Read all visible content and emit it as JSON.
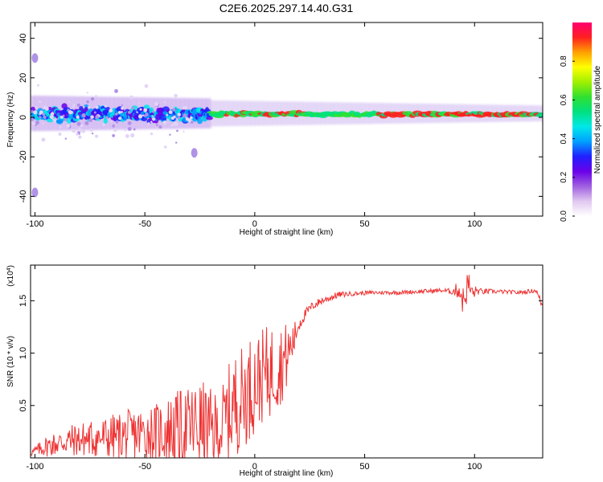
{
  "chart_data": [
    {
      "type": "heatmap",
      "title": "C2E6.2025.297.14.40.G31",
      "xlabel": "Height of straight line (km)",
      "ylabel": "Frequency (Hz)",
      "xlim": [
        -102,
        131
      ],
      "ylim": [
        -50,
        48
      ],
      "xticks": [
        -100,
        -50,
        0,
        50,
        100
      ],
      "yticks": [
        -40,
        -20,
        0,
        20,
        40
      ],
      "colorbar": {
        "label": "Normalized spectral amplitude",
        "range": [
          0,
          1
        ],
        "ticks": [
          "0.0",
          "0.2",
          "0.4",
          "0.6",
          "0.8"
        ],
        "colors": [
          "#ffffff",
          "#e0c8f0",
          "#a060e0",
          "#6a00e8",
          "#2020ff",
          "#00a0ff",
          "#00e8e8",
          "#00e080",
          "#30e030",
          "#a0f000",
          "#ffff00",
          "#ffa000",
          "#ff2020",
          "#ff0070"
        ]
      },
      "band": {
        "center_hz": 1.5,
        "x_start": -102,
        "x_end": 131,
        "width_hz_start": 14,
        "width_hz_end": 6
      },
      "features": [
        {
          "x": -27.5,
          "y": -18,
          "amplitude": 0.05,
          "note": "isolated patch"
        },
        {
          "x": -100,
          "y": 30,
          "amplitude": 0.02,
          "note": "faint speckle"
        },
        {
          "x": -100,
          "y": -38,
          "amplitude": 0.02,
          "note": "faint speckle"
        }
      ]
    },
    {
      "type": "line",
      "xlabel": "Height of straight line (km)",
      "ylabel": "SNR (10 * v/v)",
      "scale_label": "(x10",
      "scale_exponent": "4",
      "scale_suffix": ")",
      "xlim": [
        -102,
        131
      ],
      "ylim": [
        0,
        1.84
      ],
      "xticks": [
        -100,
        -50,
        0,
        50,
        100
      ],
      "yticks": [
        0.5,
        1.0,
        1.5
      ],
      "ytick_labels": [
        "0.5",
        "1.0",
        "1.5"
      ],
      "color": "#ee3333",
      "series": [
        {
          "name": "SNR",
          "x": [
            -102,
            -95,
            -85,
            -75,
            -65,
            -55,
            -45,
            -38,
            -30,
            -25,
            -20,
            -16,
            -13,
            -10,
            -6,
            -2,
            2,
            5,
            8,
            11,
            14,
            17,
            20,
            23,
            26,
            30,
            38,
            45,
            55,
            65,
            75,
            85,
            90,
            93,
            95,
            97,
            99,
            101,
            103,
            110,
            120,
            128,
            131
          ],
          "mean": [
            0.05,
            0.12,
            0.18,
            0.2,
            0.22,
            0.25,
            0.27,
            0.3,
            0.33,
            0.35,
            0.3,
            0.3,
            0.42,
            0.55,
            0.62,
            0.72,
            0.8,
            0.85,
            0.88,
            0.92,
            0.98,
            1.1,
            1.28,
            1.38,
            1.45,
            1.5,
            1.56,
            1.57,
            1.58,
            1.58,
            1.59,
            1.6,
            1.59,
            1.62,
            1.5,
            1.68,
            1.58,
            1.6,
            1.59,
            1.59,
            1.58,
            1.6,
            1.45
          ],
          "noise": [
            0.03,
            0.1,
            0.15,
            0.18,
            0.22,
            0.25,
            0.28,
            0.35,
            0.4,
            0.45,
            0.4,
            0.35,
            0.45,
            0.5,
            0.5,
            0.5,
            0.45,
            0.45,
            0.45,
            0.4,
            0.35,
            0.2,
            0.08,
            0.05,
            0.04,
            0.04,
            0.03,
            0.02,
            0.02,
            0.02,
            0.02,
            0.02,
            0.03,
            0.1,
            0.15,
            0.15,
            0.08,
            0.04,
            0.03,
            0.02,
            0.02,
            0.02,
            0.05
          ]
        }
      ]
    }
  ]
}
